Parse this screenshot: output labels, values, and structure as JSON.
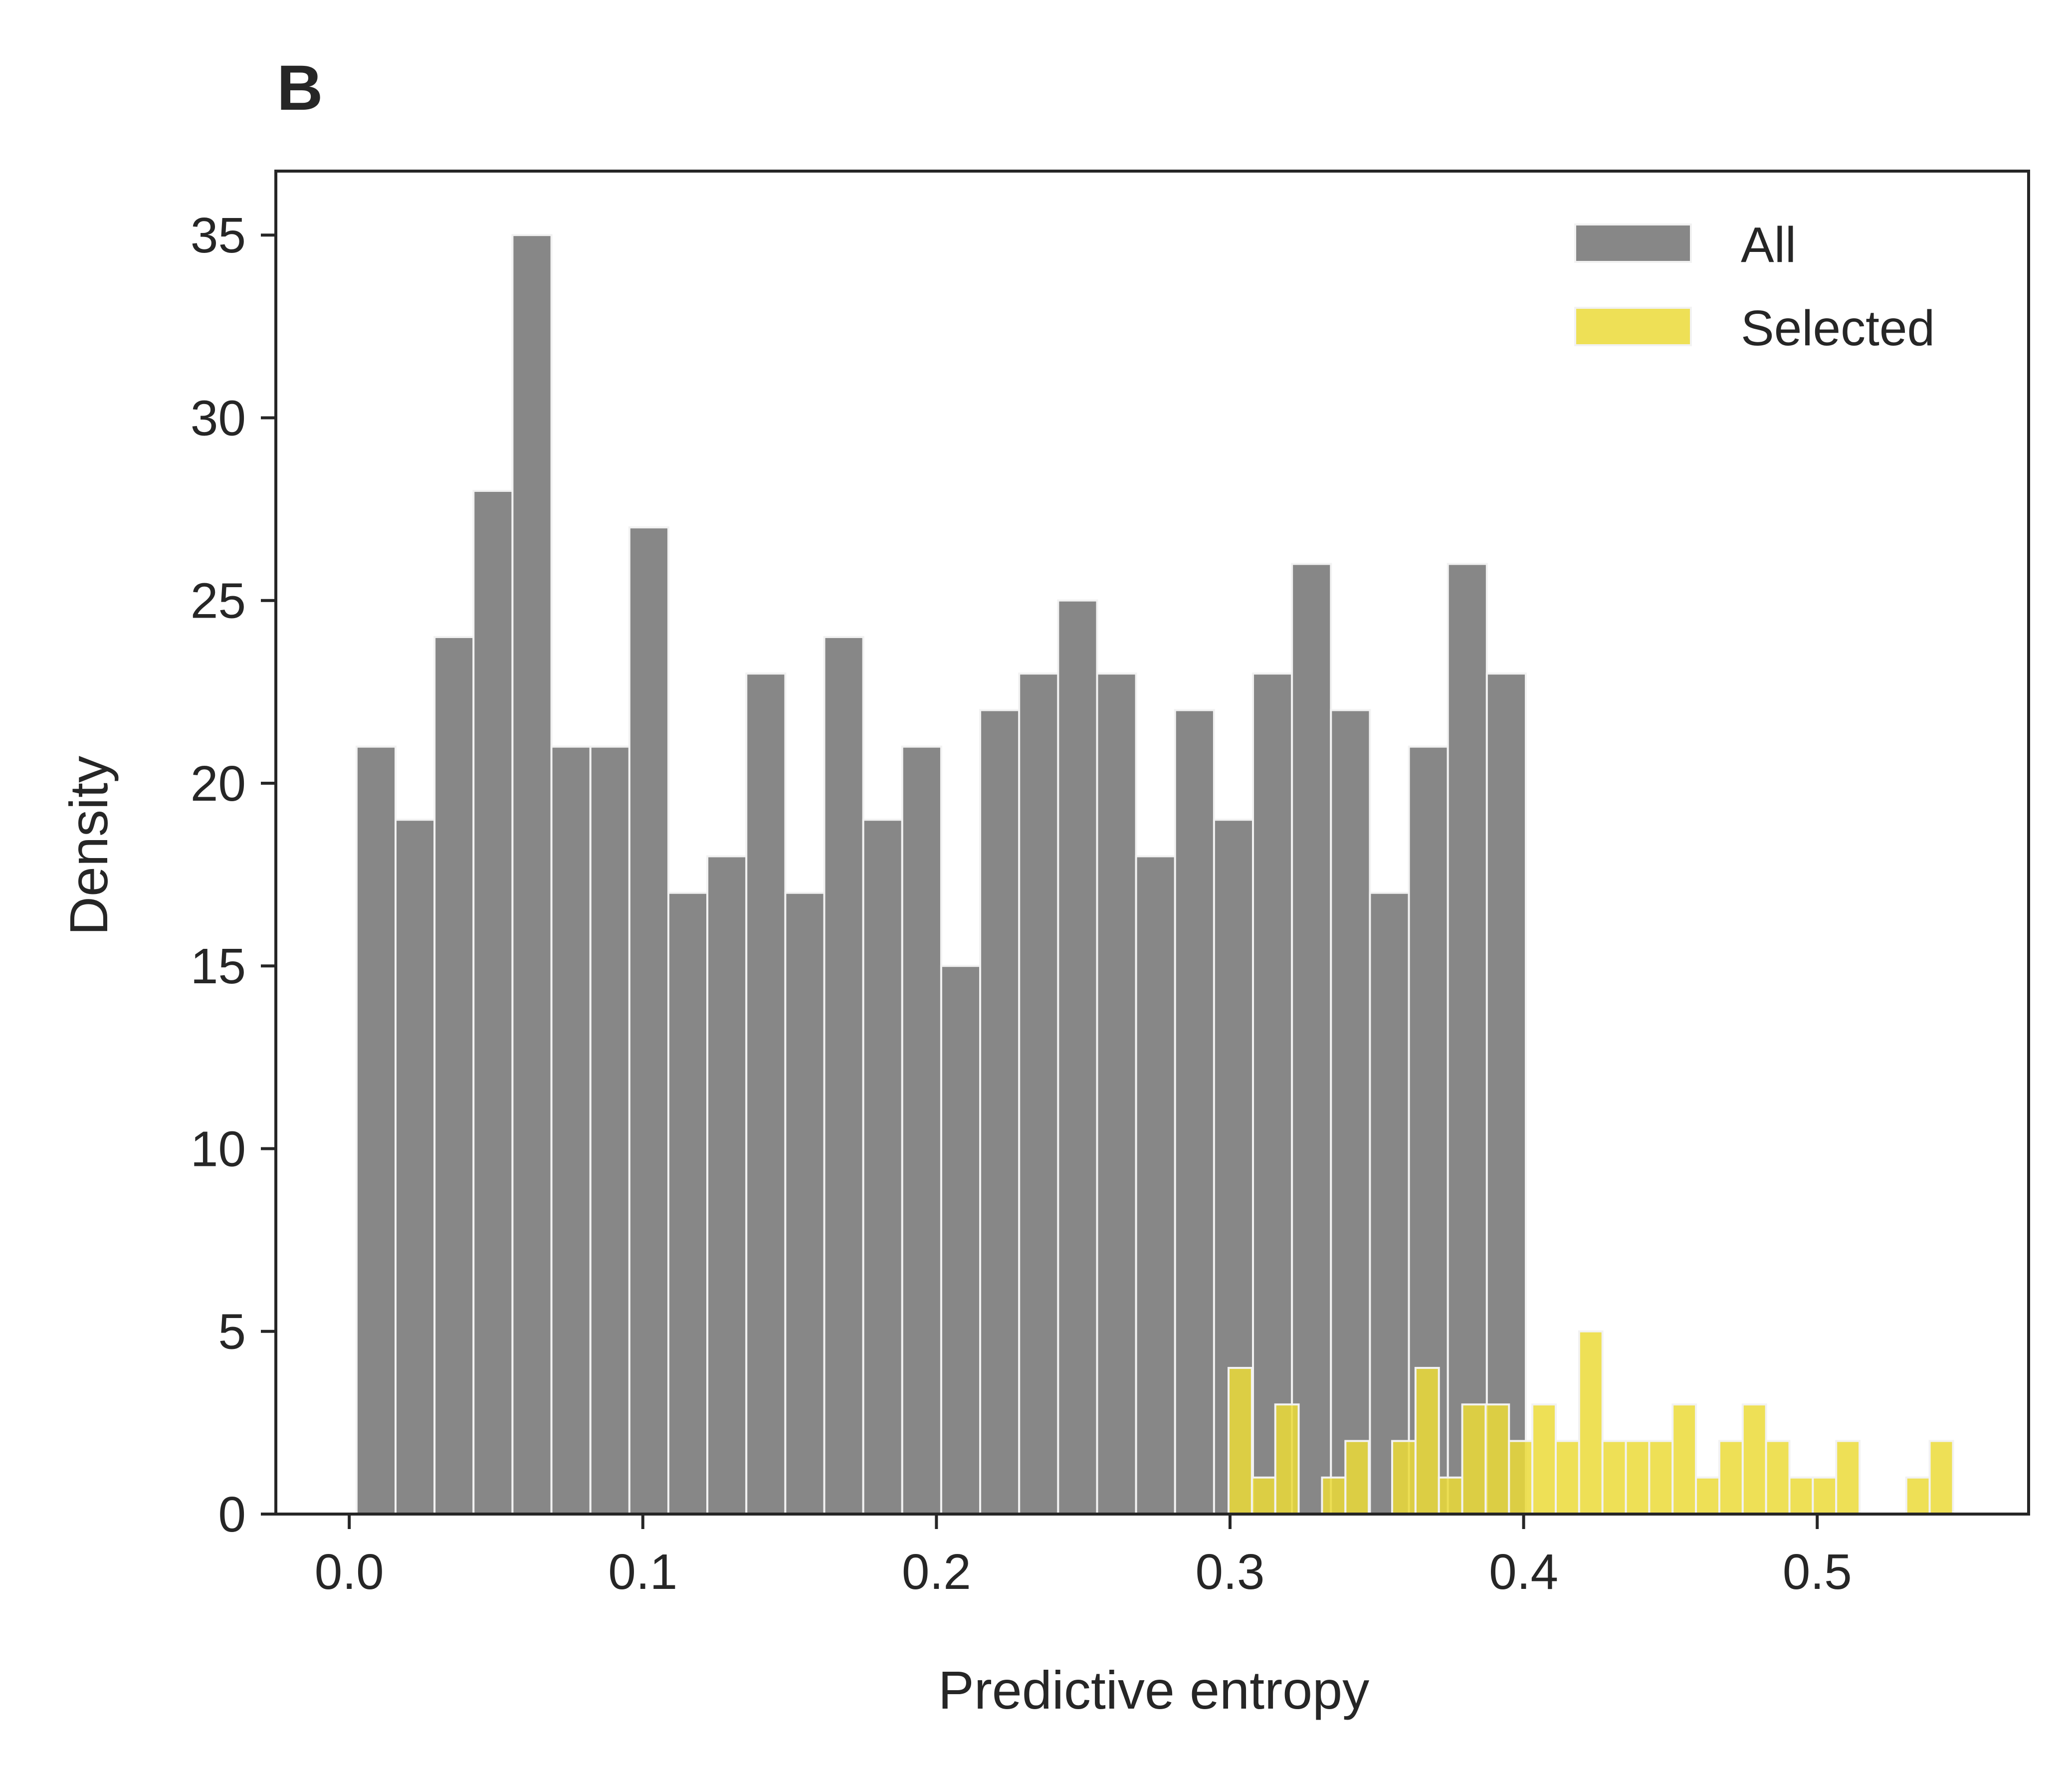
{
  "panel_label": "B",
  "colors": {
    "all": "#878787",
    "selected": "#ebdb38",
    "axis": "#262626",
    "bar_edge": "#f2f2f2"
  },
  "chart_data": {
    "type": "histogram",
    "xlabel": "Predictive entropy",
    "ylabel": "Density",
    "xlim": [
      -0.025,
      0.572
    ],
    "ylim": [
      0,
      36.75
    ],
    "xticks": [
      0.0,
      0.1,
      0.2,
      0.3,
      0.4,
      0.5
    ],
    "xtick_labels": [
      "0.0",
      "0.1",
      "0.2",
      "0.3",
      "0.4",
      "0.5"
    ],
    "yticks": [
      0,
      5,
      10,
      15,
      20,
      25,
      30,
      35
    ],
    "ytick_labels": [
      "0",
      "5",
      "10",
      "15",
      "20",
      "25",
      "30",
      "35"
    ],
    "legend": {
      "placement": "top-right",
      "entries": [
        "All",
        "Selected"
      ]
    },
    "series": [
      {
        "name": "All",
        "bin_edges": [
          0.0025,
          0.015775,
          0.02905,
          0.042325,
          0.0556,
          0.068875,
          0.08215,
          0.095425,
          0.1087,
          0.121975,
          0.13525,
          0.148525,
          0.1618,
          0.175075,
          0.18835,
          0.201625,
          0.2149,
          0.228175,
          0.24145,
          0.254725,
          0.268,
          0.281275,
          0.29455,
          0.307825,
          0.3211,
          0.334375,
          0.34765,
          0.360925,
          0.3742,
          0.387475,
          0.40075
        ],
        "values": [
          21,
          19,
          24,
          28,
          35,
          21,
          21,
          27,
          17,
          18,
          23,
          17,
          24,
          19,
          21,
          15,
          22,
          23,
          25,
          23,
          18,
          22,
          19,
          23,
          26,
          22,
          17,
          21,
          26,
          23
        ]
      },
      {
        "name": "Selected",
        "bin_edges": [
          0.2995,
          0.30746,
          0.31542,
          0.32338,
          0.33134,
          0.3393,
          0.34726,
          0.35522,
          0.36318,
          0.37114,
          0.3791,
          0.38706,
          0.39502,
          0.40298,
          0.41094,
          0.4189,
          0.42686,
          0.43482,
          0.44278,
          0.45074,
          0.4587,
          0.46666,
          0.47462,
          0.48258,
          0.49054,
          0.4985,
          0.50646,
          0.51442,
          0.52238,
          0.53034,
          0.5383,
          0.54626
        ],
        "values": [
          4,
          1,
          3,
          0,
          1,
          2,
          0,
          2,
          4,
          1,
          3,
          3,
          2,
          3,
          2,
          5,
          2,
          2,
          2,
          3,
          1,
          2,
          3,
          2,
          1,
          1,
          2,
          0,
          0,
          1,
          2
        ]
      }
    ]
  }
}
